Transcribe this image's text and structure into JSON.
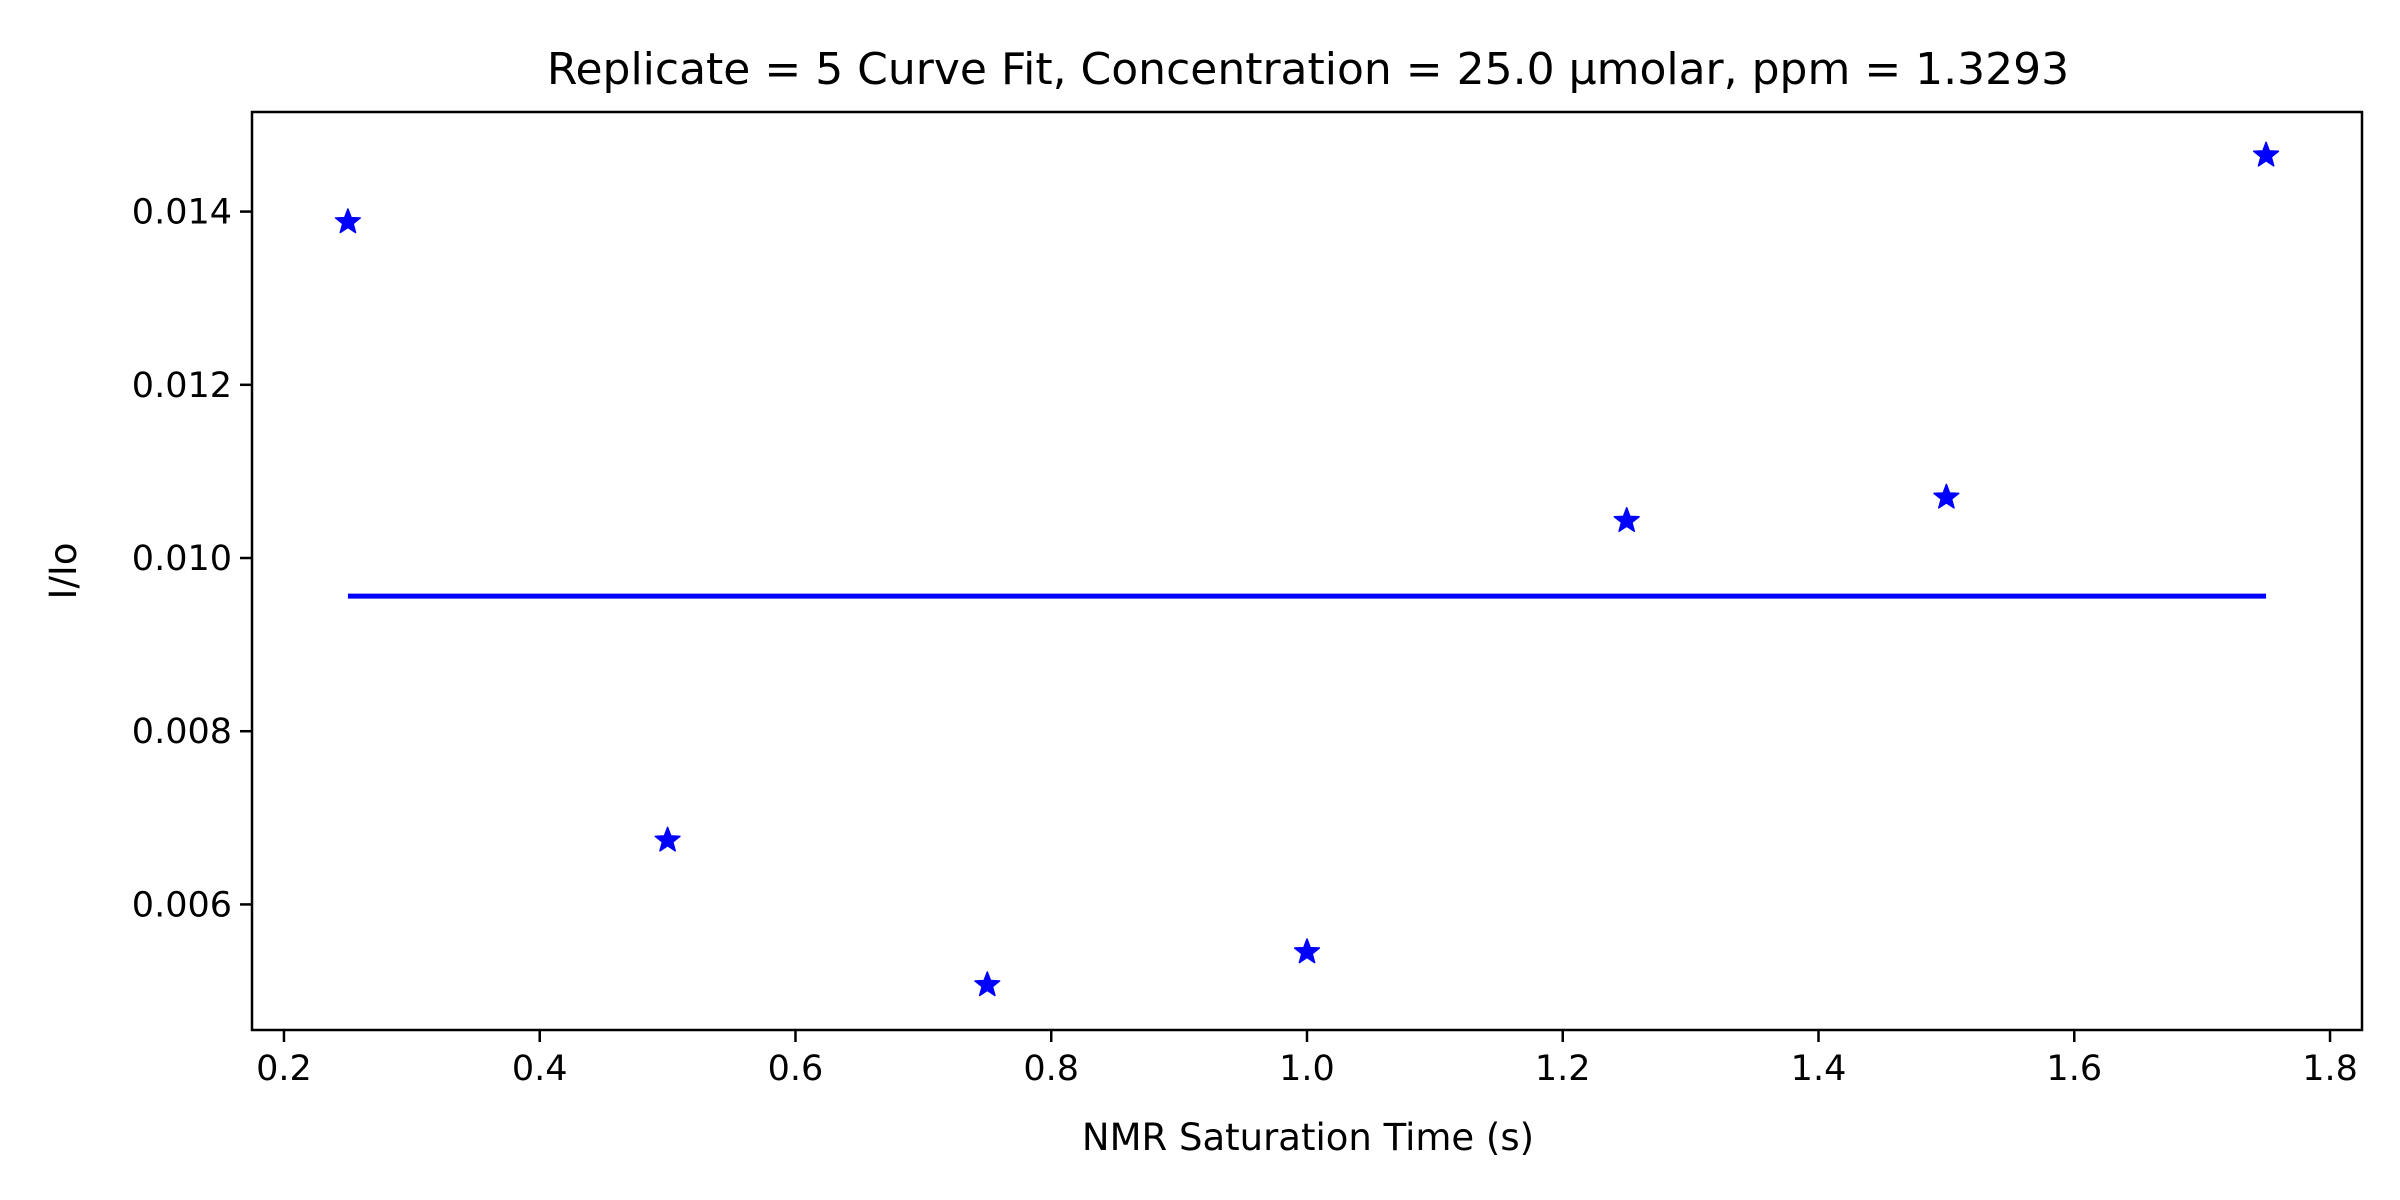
{
  "chart_data": {
    "type": "scatter",
    "title": "Replicate = 5 Curve Fit, Concentration = 25.0 µmolar, ppm = 1.3293",
    "xlabel": "NMR Saturation Time (s)",
    "ylabel": "I/Io",
    "xlim": [
      0.175,
      1.825
    ],
    "ylim": [
      0.00455,
      0.01515
    ],
    "xticks": [
      0.2,
      0.4,
      0.6,
      0.8,
      1.0,
      1.2,
      1.4,
      1.6,
      1.8
    ],
    "xtick_labels": [
      "0.2",
      "0.4",
      "0.6",
      "0.8",
      "1.0",
      "1.2",
      "1.4",
      "1.6",
      "1.8"
    ],
    "yticks": [
      0.006,
      0.008,
      0.01,
      0.012,
      0.014
    ],
    "ytick_labels": [
      "0.006",
      "0.008",
      "0.010",
      "0.012",
      "0.014"
    ],
    "grid": false,
    "colors": {
      "points": "#0000ff",
      "fit": "#0000ff",
      "axes": "#000000"
    },
    "series": [
      {
        "kind": "points",
        "marker": "star",
        "x": [
          0.25,
          0.5,
          0.75,
          1.0,
          1.25,
          1.5,
          1.75
        ],
        "y": [
          0.01388,
          0.00674,
          0.00507,
          0.00545,
          0.01043,
          0.0107,
          0.01465
        ]
      },
      {
        "kind": "line",
        "x": [
          0.25,
          1.75
        ],
        "y": [
          0.00956,
          0.00956
        ]
      }
    ]
  }
}
